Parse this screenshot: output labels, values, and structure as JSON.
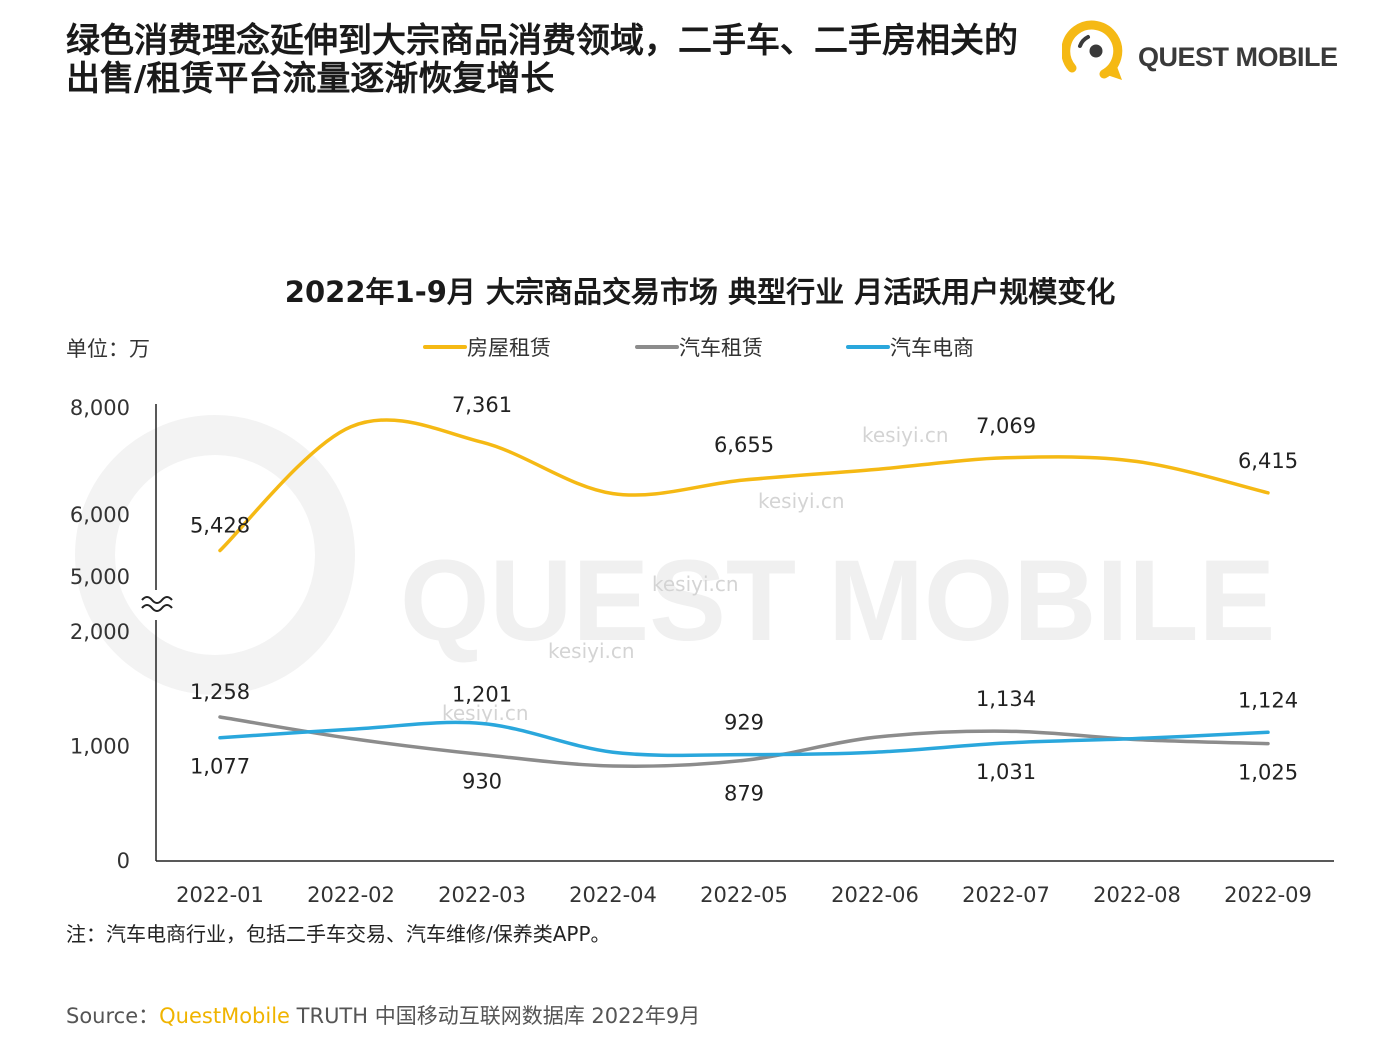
{
  "header": {
    "title_line1": "绿色消费理念延伸到大宗商品消费领域，二手车、二手房相关的",
    "title_line2": "出售/租赁平台流量逐渐恢复增长",
    "brand": "QUEST MOBILE",
    "brand_colors": {
      "ring": "#f5b914",
      "dot": "#3a3a3a"
    }
  },
  "watermark": {
    "text": "QUEST MOBILE",
    "site": "kesiyi.cn"
  },
  "chart_data": {
    "type": "line",
    "title": "2022年1-9月 大宗商品交易市场 典型行业 月活跃用户规模变化",
    "unit_label": "单位：万",
    "categories": [
      "2022-01",
      "2022-02",
      "2022-03",
      "2022-04",
      "2022-05",
      "2022-06",
      "2022-07",
      "2022-08",
      "2022-09"
    ],
    "y_axis": {
      "broken": true,
      "lower_range": [
        0,
        2000
      ],
      "upper_range": [
        5000,
        8000
      ],
      "tick_labels": [
        "0",
        "1,000",
        "2,000",
        "5,000",
        "6,000",
        "8,000"
      ]
    },
    "legend_position": "top",
    "series": [
      {
        "name": "房屋租赁",
        "color": "#f5b914",
        "values": [
          5428,
          7650,
          7361,
          6400,
          6655,
          6850,
          7069,
          7000,
          6415
        ],
        "data_labels": {
          "0": "5,428",
          "2": "7,361",
          "4": "6,655",
          "6": "7,069",
          "8": "6,415"
        }
      },
      {
        "name": "汽车租赁",
        "color": "#8c8c8c",
        "values": [
          1258,
          1070,
          930,
          830,
          879,
          1080,
          1134,
          1060,
          1025
        ],
        "data_labels": {
          "0": "1,258",
          "2": "930",
          "4": "879",
          "6": "1,134",
          "8": "1,025"
        }
      },
      {
        "name": "汽车电商",
        "color": "#2aa7dc",
        "values": [
          1077,
          1150,
          1201,
          950,
          929,
          950,
          1031,
          1070,
          1124
        ],
        "data_labels": {
          "0": "1,077",
          "2": "1,201",
          "4": "929",
          "6": "1,031",
          "8": "1,124"
        }
      }
    ]
  },
  "footnote": "注：汽车电商行业，包括二手车交易、汽车维修/保养类APP。",
  "source": {
    "prefix": "Source：",
    "highlight": "QuestMobile",
    "rest": " TRUTH 中国移动互联网数据库 2022年9月"
  }
}
